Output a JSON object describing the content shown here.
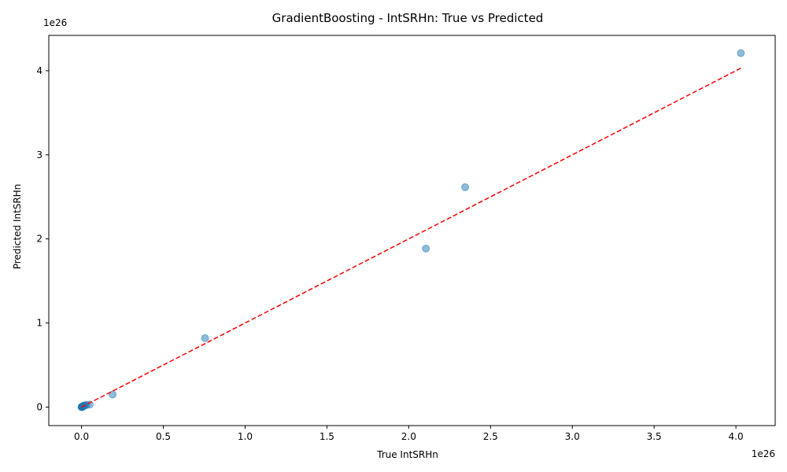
{
  "chart_data": {
    "type": "scatter",
    "title": "GradientBoosting - IntSRHn: True vs Predicted",
    "xlabel": "True IntSRHn",
    "ylabel": "Predicted IntSRHn",
    "x_offset_label": "1e26",
    "y_offset_label": "1e26",
    "xlim": [
      -0.2,
      4.24
    ],
    "ylim": [
      -0.22,
      4.42
    ],
    "x_ticks": [
      0.0,
      0.5,
      1.0,
      1.5,
      2.0,
      2.5,
      3.0,
      3.5,
      4.0
    ],
    "x_tick_labels": [
      "0.0",
      "0.5",
      "1.0",
      "1.5",
      "2.0",
      "2.5",
      "3.0",
      "3.5",
      "4.0"
    ],
    "y_ticks": [
      0,
      1,
      2,
      3,
      4
    ],
    "y_tick_labels": [
      "0",
      "1",
      "2",
      "3",
      "4"
    ],
    "grid": false,
    "point_color": "#1f77b4",
    "point_alpha": 0.5,
    "series": [
      {
        "x": [
          0.0,
          0.001,
          0.002,
          0.003,
          0.004,
          0.005,
          0.006,
          0.008,
          0.01,
          0.012,
          0.015,
          0.02,
          0.03,
          0.05,
          0.19,
          0.755,
          2.105,
          2.345,
          4.03
        ],
        "y": [
          0.0,
          0.002,
          0.001,
          0.004,
          0.003,
          0.006,
          0.005,
          0.009,
          0.012,
          0.01,
          0.018,
          0.02,
          0.025,
          0.03,
          0.15,
          0.82,
          1.885,
          2.615,
          4.21
        ]
      }
    ],
    "reference_line": {
      "x": [
        0.0,
        4.03
      ],
      "y": [
        0.0,
        4.03
      ],
      "color": "#ff0000",
      "style": "dashed"
    }
  }
}
